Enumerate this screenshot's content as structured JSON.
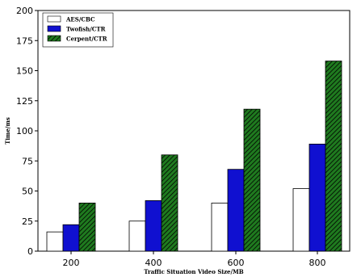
{
  "chart_data": {
    "type": "bar",
    "title": "",
    "xlabel": "Traffic Situation Video Size/MB",
    "ylabel": "Time/ms",
    "categories": [
      "200",
      "400",
      "600",
      "800"
    ],
    "series": [
      {
        "name": "AES/CBC",
        "values": [
          16,
          25,
          40,
          52
        ],
        "color": "#ffffff",
        "pattern": "none"
      },
      {
        "name": "Twofish/CTR",
        "values": [
          22,
          42,
          68,
          89
        ],
        "color": "#1010d0",
        "pattern": "none"
      },
      {
        "name": "Cerpent/CTR",
        "values": [
          40,
          80,
          118,
          158
        ],
        "color": "#1f7a1f",
        "pattern": "hatch"
      }
    ],
    "ylim": [
      0,
      200
    ],
    "yticks": [
      0,
      25,
      50,
      75,
      100,
      125,
      150,
      175,
      200
    ],
    "grid": false,
    "legend_position": "top-left"
  }
}
